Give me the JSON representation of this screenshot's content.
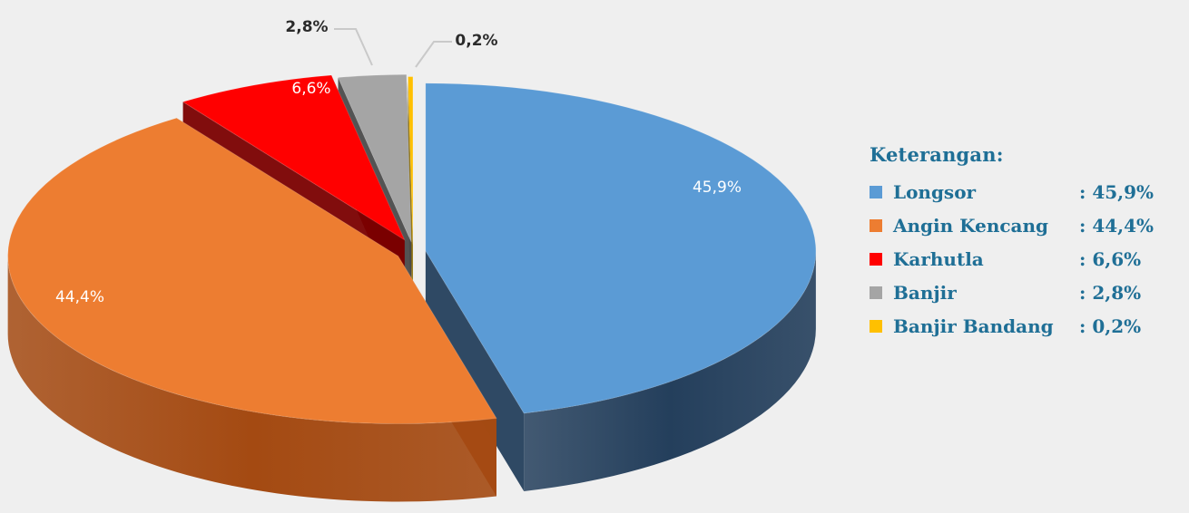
{
  "chart_data": {
    "type": "pie",
    "title": "",
    "slices": [
      {
        "label": "Longsor",
        "value": 45.9,
        "display": "45,9%",
        "color": "#5b9bd5",
        "side_color": "#243f5c",
        "label_placement": "inside"
      },
      {
        "label": "Angin Kencang",
        "value": 44.4,
        "display": "44,4%",
        "color": "#ed7d31",
        "side_color": "#a44a12",
        "label_placement": "inside"
      },
      {
        "label": "Karhutla",
        "value": 6.6,
        "display": "6,6%",
        "color": "#ff0000",
        "side_color": "#7a0000",
        "label_placement": "inside"
      },
      {
        "label": "Banjir",
        "value": 2.8,
        "display": "2,8%",
        "color": "#a5a5a5",
        "side_color": "#4a4a4a",
        "label_placement": "outside"
      },
      {
        "label": "Banjir Bandang",
        "value": 0.2,
        "display": "0,2%",
        "color": "#ffc000",
        "side_color": "#8a6a00",
        "label_placement": "outside"
      }
    ],
    "legend_position": "right"
  },
  "legend": {
    "title": "Keterangan:",
    "items": [
      {
        "name": "Longsor",
        "value": ": 45,9%",
        "color": "#5b9bd5"
      },
      {
        "name": "Angin Kencang",
        "value": ": 44,4%",
        "color": "#ed7d31"
      },
      {
        "name": "Karhutla",
        "value": ": 6,6%",
        "color": "#ff0000"
      },
      {
        "name": "Banjir",
        "value": ": 2,8%",
        "color": "#a5a5a5"
      },
      {
        "name": "Banjir Bandang",
        "value": ": 0,2%",
        "color": "#ffc000"
      }
    ]
  }
}
